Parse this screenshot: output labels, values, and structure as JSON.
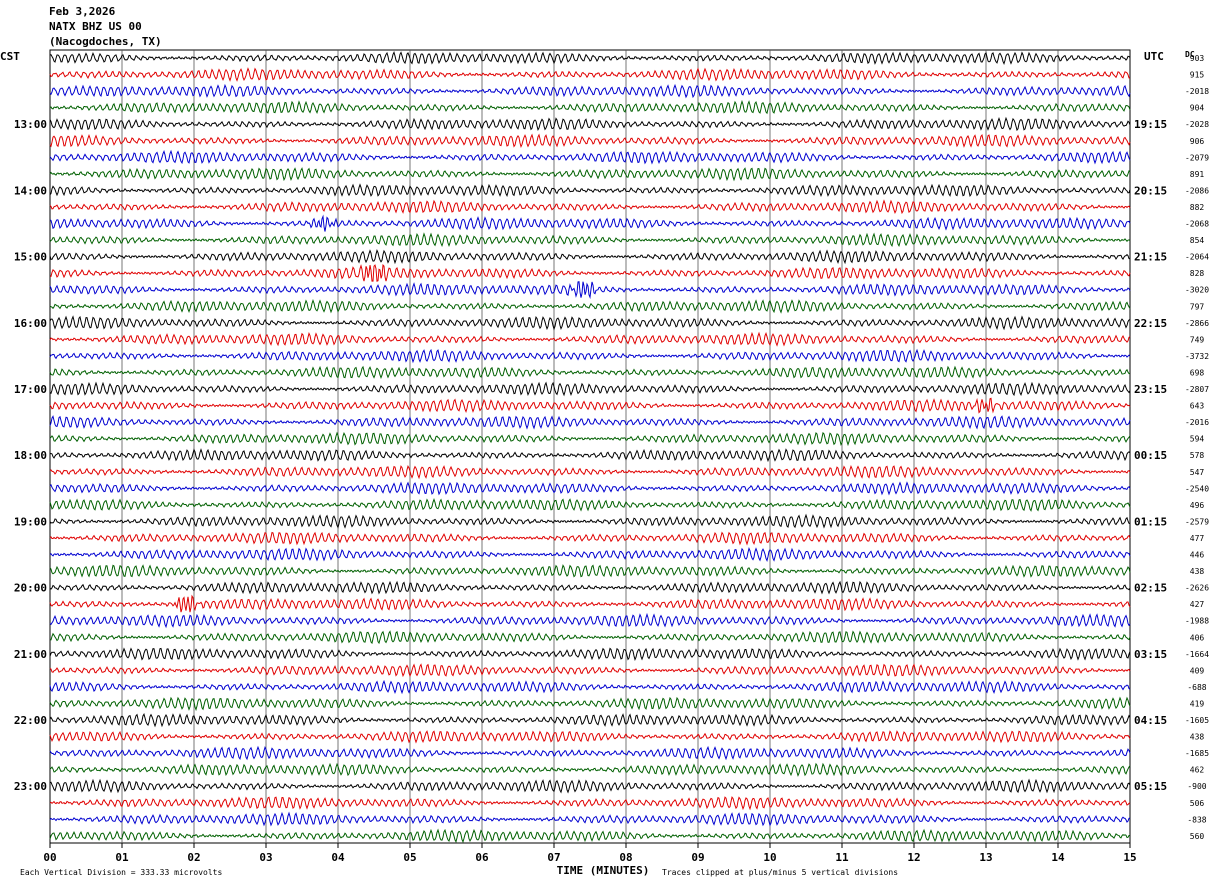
{
  "header": {
    "date": "Feb 3,2026",
    "station": "NATX BHZ US 00",
    "location": "(Nacogdoches, TX)"
  },
  "left_zone": "CST",
  "right_zone": "UTC",
  "dc_label": "DC",
  "footer": {
    "scale_note": "Each Vertical Division =  333.33 microvolts",
    "clip_note": "Traces clipped at plus/minus 5 vertical divisions"
  },
  "colors": {
    "trace_cycle": [
      "#000000",
      "#e00000",
      "#0000d0",
      "#006000"
    ],
    "grid": "#000000"
  },
  "chart_data": {
    "type": "line",
    "title": "",
    "xlabel": "TIME (MINUTES)",
    "xlim": [
      0,
      15
    ],
    "x_ticks": [
      "00",
      "01",
      "02",
      "03",
      "04",
      "05",
      "06",
      "07",
      "08",
      "09",
      "10",
      "11",
      "12",
      "13",
      "14",
      "15"
    ],
    "left_hour_labels": [
      "13:00",
      "14:00",
      "15:00",
      "16:00",
      "17:00",
      "18:00",
      "19:00",
      "20:00",
      "21:00",
      "22:00",
      "23:00"
    ],
    "right_hour_labels": [
      "19:15",
      "20:15",
      "21:15",
      "22:15",
      "23:15",
      "00:15",
      "01:15",
      "02:15",
      "03:15",
      "04:15",
      "05:15"
    ],
    "dc_offsets": [
      "903",
      "915",
      "-2018",
      "904",
      "-2028",
      "906",
      "-2079",
      "891",
      "-2086",
      "882",
      "-2068",
      "854",
      "-2064",
      "828",
      "-3020",
      "797",
      "-2866",
      "749",
      "-3732",
      "698",
      "-2807",
      "643",
      "-2016",
      "594",
      "578",
      "547",
      "-2540",
      "496",
      "-2579",
      "477",
      "446",
      "438",
      "-2626",
      "427",
      "-1988",
      "406",
      "-1664",
      "409",
      "-688",
      "419",
      "-1605",
      "438",
      "-1685",
      "462",
      "-900",
      "506",
      "-838",
      "560"
    ],
    "row_count": 48,
    "minutes_per_row": 15,
    "events": [
      {
        "row": 13,
        "minute": 4.5,
        "amp": 3.2
      },
      {
        "row": 14,
        "minute": 7.4,
        "amp": 2.4
      },
      {
        "row": 33,
        "minute": 1.9,
        "amp": 2.2
      },
      {
        "row": 10,
        "minute": 3.8,
        "amp": 1.6
      },
      {
        "row": 21,
        "minute": 13.0,
        "amp": 1.5
      }
    ]
  }
}
